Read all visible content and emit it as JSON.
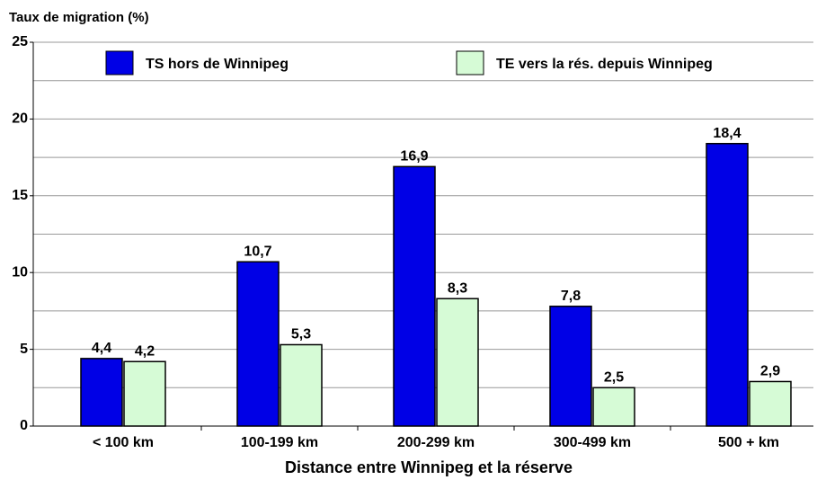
{
  "chart_data": {
    "type": "bar",
    "y_axis_label": "Taux de migration (%)",
    "x_axis_label": "Distance entre Winnipeg et la réserve",
    "categories": [
      "< 100 km",
      "100-199 km",
      "200-299 km",
      "300-499 km",
      "500 + km"
    ],
    "series": [
      {
        "name": "TS hors de Winnipeg",
        "color": "#0000e6",
        "values": [
          4.4,
          10.7,
          16.9,
          7.8,
          18.4
        ],
        "value_labels": [
          "4,4",
          "10,7",
          "16,9",
          "7,8",
          "18,4"
        ]
      },
      {
        "name": "TE vers la rés. depuis Winnipeg",
        "color": "#d6fbd6",
        "values": [
          4.2,
          5.3,
          8.3,
          2.5,
          2.9
        ],
        "value_labels": [
          "4,2",
          "5,3",
          "8,3",
          "2,5",
          "2,9"
        ]
      }
    ],
    "ylim": [
      0,
      25
    ],
    "yticks": [
      0,
      5,
      10,
      15,
      20,
      25
    ],
    "minor_yticks": [
      2.5,
      7.5,
      12.5,
      17.5,
      22.5
    ],
    "grid": true,
    "legend": "top"
  }
}
